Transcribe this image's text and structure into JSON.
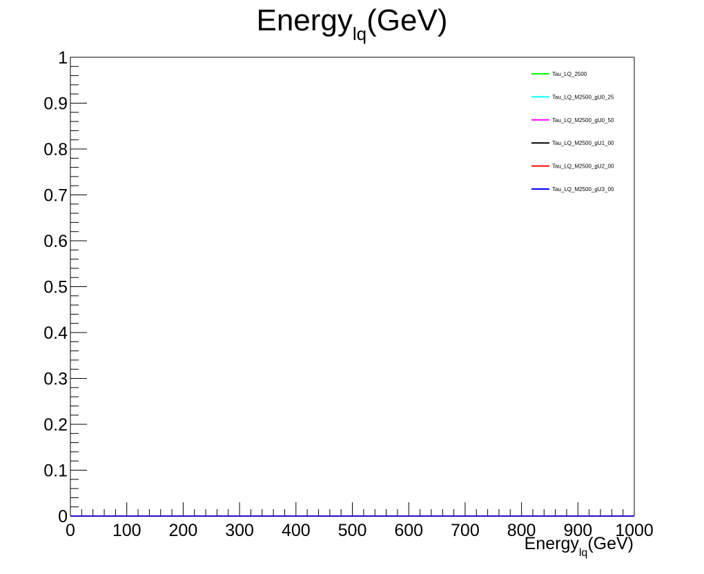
{
  "chart_data": {
    "type": "line",
    "title": {
      "main": "Energy",
      "sub": "lq",
      "suffix": "(GeV)"
    },
    "xlabel": {
      "main": "Energy",
      "sub": "lq",
      "suffix": "(GeV)"
    },
    "ylabel": "",
    "xlim": [
      0,
      1000
    ],
    "ylim": [
      0,
      1
    ],
    "x_ticks": [
      "0",
      "100",
      "200",
      "300",
      "400",
      "500",
      "600",
      "700",
      "800",
      "900",
      "1000"
    ],
    "y_ticks": [
      "0",
      "0.1",
      "0.2",
      "0.3",
      "0.4",
      "0.5",
      "0.6",
      "0.7",
      "0.8",
      "0.9",
      "1"
    ],
    "grid": false,
    "legend_position": "top-right",
    "series": [
      {
        "name": "Tau_LQ_2500",
        "color": "#00ff00",
        "x": [
          0,
          1000
        ],
        "values": [
          0,
          0
        ]
      },
      {
        "name": "Tau_LQ_M2500_gU0_25",
        "color": "#00ffff",
        "x": [
          0,
          1000
        ],
        "values": [
          0,
          0
        ]
      },
      {
        "name": "Tau_LQ_M2500_gU0_50",
        "color": "#ff00ff",
        "x": [
          0,
          1000
        ],
        "values": [
          0,
          0
        ]
      },
      {
        "name": "Tau_LQ_M2500_gU1_00",
        "color": "#000000",
        "x": [
          0,
          1000
        ],
        "values": [
          0,
          0
        ]
      },
      {
        "name": "Tau_LQ_M2500_gU2_00",
        "color": "#ff0000",
        "x": [
          0,
          1000
        ],
        "values": [
          0,
          0
        ]
      },
      {
        "name": "Tau_LQ_M2500_gU3_00",
        "color": "#0000ff",
        "x": [
          0,
          1000
        ],
        "values": [
          0,
          0
        ]
      }
    ]
  }
}
